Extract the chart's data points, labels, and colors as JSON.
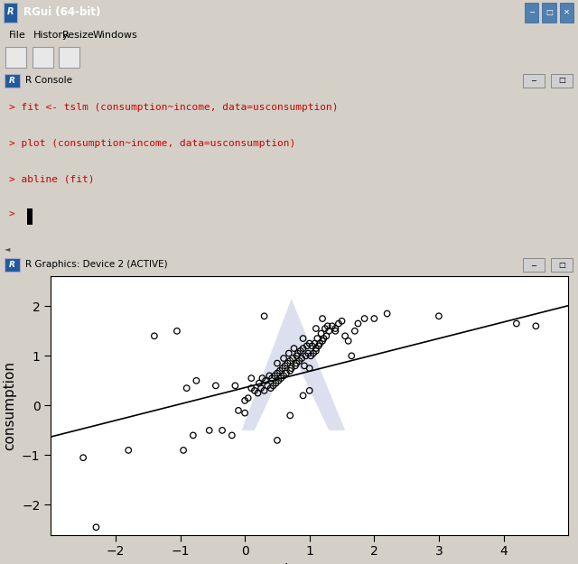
{
  "title_bar_text": "RGui (64-bit)",
  "menu_items": [
    "File",
    "History",
    "Resize",
    "Windows"
  ],
  "console_title": "R Console",
  "console_lines": [
    "> fit <- tslm (consumption~income, data=usconsumption)",
    "> plot (consumption~income, data=usconsumption)",
    "> abline (fit)",
    "> "
  ],
  "graphics_title": "R Graphics: Device 2 (ACTIVE)",
  "xlabel": "income",
  "ylabel": "consumption",
  "xlim": [
    -3.0,
    5.0
  ],
  "ylim": [
    -2.6,
    2.6
  ],
  "xticks": [
    -2,
    -1,
    0,
    1,
    2,
    3,
    4
  ],
  "yticks": [
    -2,
    -1,
    0,
    1,
    2
  ],
  "regression_intercept": 0.36,
  "regression_slope": 0.33,
  "scatter_x": [
    -2.5,
    -2.3,
    -1.8,
    -1.4,
    -1.05,
    -0.95,
    -0.9,
    -0.75,
    -0.55,
    -0.45,
    -0.35,
    -0.2,
    -0.15,
    -0.1,
    0.0,
    0.05,
    0.1,
    0.1,
    0.15,
    0.2,
    0.22,
    0.25,
    0.27,
    0.3,
    0.32,
    0.35,
    0.38,
    0.4,
    0.42,
    0.44,
    0.46,
    0.48,
    0.5,
    0.5,
    0.52,
    0.54,
    0.56,
    0.58,
    0.6,
    0.6,
    0.62,
    0.64,
    0.66,
    0.68,
    0.7,
    0.7,
    0.72,
    0.74,
    0.76,
    0.78,
    0.8,
    0.8,
    0.82,
    0.84,
    0.86,
    0.88,
    0.9,
    0.9,
    0.92,
    0.94,
    0.96,
    0.98,
    1.0,
    1.0,
    1.02,
    1.04,
    1.06,
    1.08,
    1.1,
    1.1,
    1.12,
    1.14,
    1.16,
    1.18,
    1.2,
    1.22,
    1.24,
    1.26,
    1.28,
    1.3,
    1.35,
    1.4,
    1.45,
    1.5,
    1.55,
    1.6,
    1.65,
    1.7,
    1.75,
    1.85,
    2.0,
    2.2,
    3.0,
    4.2,
    4.5,
    -0.8,
    0.0,
    0.3,
    0.5,
    0.7,
    0.9,
    1.0,
    1.1,
    1.2,
    1.4
  ],
  "scatter_y": [
    -1.05,
    -2.45,
    -0.9,
    1.4,
    1.5,
    -0.9,
    0.35,
    0.5,
    -0.5,
    0.4,
    -0.5,
    -0.6,
    0.4,
    -0.1,
    0.1,
    0.15,
    0.35,
    0.55,
    0.3,
    0.25,
    0.45,
    0.35,
    0.55,
    0.3,
    0.5,
    0.4,
    0.6,
    0.35,
    0.55,
    0.4,
    0.6,
    0.45,
    0.65,
    0.85,
    0.5,
    0.7,
    0.55,
    0.75,
    0.95,
    0.6,
    0.8,
    0.65,
    0.85,
    1.05,
    0.7,
    0.9,
    0.75,
    0.95,
    1.15,
    0.8,
    1.0,
    0.85,
    1.05,
    0.9,
    1.1,
    0.95,
    1.15,
    1.35,
    0.8,
    1.0,
    1.2,
    1.05,
    1.25,
    0.75,
    1.0,
    1.2,
    1.05,
    1.25,
    1.1,
    1.15,
    1.35,
    1.2,
    1.25,
    1.45,
    1.3,
    1.35,
    1.55,
    1.4,
    1.6,
    1.5,
    1.6,
    1.55,
    1.65,
    1.7,
    1.4,
    1.3,
    1.0,
    1.5,
    1.65,
    1.75,
    1.75,
    1.85,
    1.8,
    1.65,
    1.6,
    -0.6,
    -0.15,
    1.8,
    -0.7,
    -0.2,
    0.2,
    0.3,
    1.55,
    1.75,
    1.5
  ],
  "bg_gray": "#d4d0c8",
  "bg_blue_bar": "#b8cce4",
  "title_bar_bg": "#3a6ea5",
  "console_bg": "#ffffff",
  "console_text_color": "#cc0000",
  "plot_bg": "#ffffff",
  "watermark_color": "#c0c8e0",
  "watermark_alpha": 0.55,
  "scatter_color": "#000000",
  "line_color": "#000000",
  "panel_bg": "#d8e4f0"
}
